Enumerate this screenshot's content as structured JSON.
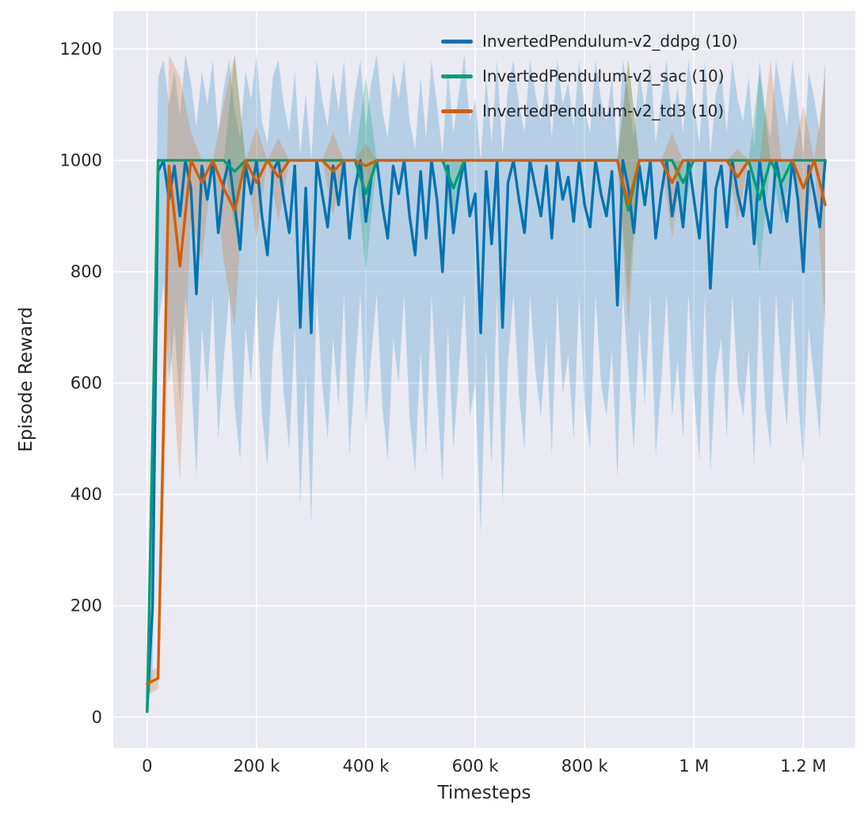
{
  "figure": {
    "background": "#ffffff",
    "axes_background": "#eaeaf2",
    "grid_color": "#ffffff",
    "text_color": "#262626"
  },
  "chart_data": {
    "type": "line",
    "title": "",
    "xlabel": "Timesteps",
    "ylabel": "Episode Reward",
    "grid": true,
    "legend_position": "upper center-right",
    "xlim": [
      -62000,
      1295000
    ],
    "ylim": [
      -55,
      1268
    ],
    "xticks": [
      {
        "value": 0,
        "label": "0"
      },
      {
        "value": 200000,
        "label": "200 k"
      },
      {
        "value": 400000,
        "label": "400 k"
      },
      {
        "value": 600000,
        "label": "600 k"
      },
      {
        "value": 800000,
        "label": "800 k"
      },
      {
        "value": 1000000,
        "label": "1 M"
      },
      {
        "value": 1200000,
        "label": "1.2 M"
      }
    ],
    "yticks": [
      {
        "value": 0,
        "label": "0"
      },
      {
        "value": 200,
        "label": "200"
      },
      {
        "value": 400,
        "label": "400"
      },
      {
        "value": 600,
        "label": "600"
      },
      {
        "value": 800,
        "label": "800"
      },
      {
        "value": 1000,
        "label": "1000"
      },
      {
        "value": 1200,
        "label": "1200"
      }
    ],
    "series": [
      {
        "name": "InvertedPendulum-v2_ddpg (10)",
        "color": "#0173b2",
        "band_alpha": 0.22,
        "line_width": 3.4,
        "x_step": 10000,
        "values": [
          15,
          200,
          980,
          1000,
          930,
          990,
          900,
          1000,
          950,
          760,
          990,
          930,
          1000,
          870,
          960,
          1000,
          920,
          840,
          990,
          940,
          1000,
          900,
          830,
          980,
          1000,
          930,
          870,
          990,
          700,
          950,
          690,
          1000,
          940,
          880,
          990,
          920,
          1000,
          860,
          950,
          1000,
          890,
          970,
          1000,
          920,
          860,
          990,
          940,
          1000,
          900,
          830,
          980,
          860,
          1000,
          930,
          800,
          990,
          870,
          950,
          1000,
          900,
          940,
          690,
          980,
          850,
          1000,
          700,
          960,
          1000,
          930,
          870,
          1000,
          950,
          900,
          990,
          860,
          1000,
          930,
          970,
          890,
          1000,
          920,
          880,
          1000,
          940,
          900,
          980,
          740,
          1000,
          950,
          870,
          990,
          920,
          1000,
          860,
          940,
          1000,
          900,
          960,
          880,
          1000,
          930,
          860,
          1000,
          770,
          950,
          990,
          880,
          1000,
          940,
          900,
          980,
          850,
          1000,
          920,
          870,
          1000,
          950,
          890,
          1000,
          930,
          800,
          990,
          940,
          880,
          1000
        ],
        "band_low": [
          5,
          80,
          700,
          780,
          600,
          700,
          560,
          760,
          620,
          430,
          700,
          580,
          760,
          500,
          640,
          760,
          560,
          460,
          700,
          600,
          760,
          540,
          450,
          660,
          760,
          580,
          480,
          700,
          380,
          620,
          350,
          760,
          600,
          500,
          680,
          560,
          760,
          470,
          620,
          760,
          520,
          650,
          760,
          560,
          460,
          680,
          600,
          760,
          540,
          440,
          660,
          470,
          760,
          580,
          420,
          700,
          480,
          620,
          760,
          540,
          600,
          330,
          660,
          450,
          760,
          380,
          640,
          760,
          580,
          480,
          760,
          620,
          540,
          680,
          470,
          760,
          580,
          650,
          500,
          760,
          560,
          480,
          760,
          600,
          540,
          660,
          430,
          760,
          620,
          480,
          700,
          560,
          760,
          470,
          600,
          760,
          540,
          640,
          500,
          760,
          580,
          460,
          760,
          440,
          620,
          680,
          500,
          760,
          600,
          540,
          660,
          450,
          760,
          560,
          480,
          760,
          620,
          520,
          760,
          580,
          450,
          700,
          600,
          500,
          760
        ],
        "band_high": [
          60,
          400,
          1150,
          1180,
          1100,
          1160,
          1080,
          1190,
          1140,
          1060,
          1160,
          1100,
          1180,
          1050,
          1130,
          1180,
          1090,
          1040,
          1160,
          1110,
          1190,
          1070,
          1030,
          1150,
          1180,
          1100,
          1050,
          1160,
          1010,
          1120,
          1000,
          1180,
          1110,
          1060,
          1160,
          1090,
          1180,
          1040,
          1120,
          1180,
          1060,
          1140,
          1190,
          1090,
          1040,
          1160,
          1110,
          1180,
          1070,
          1020,
          1150,
          1040,
          1180,
          1100,
          1010,
          1160,
          1050,
          1120,
          1190,
          1070,
          1110,
          1000,
          1150,
          1030,
          1180,
          1010,
          1130,
          1180,
          1100,
          1050,
          1180,
          1120,
          1070,
          1160,
          1040,
          1180,
          1100,
          1140,
          1060,
          1180,
          1090,
          1050,
          1180,
          1110,
          1070,
          1150,
          1010,
          1180,
          1120,
          1040,
          1160,
          1090,
          1180,
          1030,
          1110,
          1180,
          1070,
          1130,
          1050,
          1180,
          1100,
          1030,
          1180,
          1010,
          1120,
          1160,
          1050,
          1180,
          1110,
          1070,
          1150,
          1020,
          1180,
          1090,
          1040,
          1180,
          1120,
          1060,
          1180,
          1100,
          1010,
          1160,
          1110,
          1050,
          1180
        ]
      },
      {
        "name": "InvertedPendulum-v2_sac (10)",
        "color": "#029e73",
        "band_alpha": 0.25,
        "line_width": 3.4,
        "x_step": 20000,
        "values": [
          10,
          1000,
          1000,
          1000,
          1000,
          1000,
          1000,
          1000,
          980,
          1000,
          1000,
          1000,
          1000,
          1000,
          1000,
          1000,
          1000,
          1000,
          1000,
          1000,
          940,
          1000,
          1000,
          1000,
          1000,
          1000,
          1000,
          1000,
          950,
          1000,
          1000,
          1000,
          1000,
          1000,
          1000,
          1000,
          1000,
          1000,
          1000,
          1000,
          1000,
          1000,
          1000,
          1000,
          910,
          1000,
          1000,
          1000,
          1000,
          960,
          1000,
          1000,
          1000,
          1000,
          1000,
          1000,
          930,
          1000,
          960,
          1000,
          1000,
          1000,
          1000
        ],
        "band_low": [
          5,
          1000,
          1000,
          1000,
          1000,
          1000,
          1000,
          1000,
          880,
          1000,
          1000,
          1000,
          1000,
          1000,
          1000,
          1000,
          1000,
          1000,
          1000,
          1000,
          800,
          1000,
          1000,
          1000,
          1000,
          1000,
          1000,
          1000,
          860,
          1000,
          1000,
          1000,
          1000,
          1000,
          1000,
          1000,
          1000,
          1000,
          1000,
          1000,
          1000,
          1000,
          1000,
          1000,
          760,
          1000,
          1000,
          1000,
          1000,
          890,
          1000,
          1000,
          1000,
          1000,
          1000,
          1000,
          800,
          1000,
          890,
          1000,
          1000,
          1000,
          1000
        ],
        "band_high": [
          40,
          1000,
          1000,
          1000,
          1000,
          1000,
          1000,
          1000,
          1190,
          1000,
          1000,
          1000,
          1000,
          1000,
          1000,
          1000,
          1000,
          1000,
          1000,
          1000,
          1150,
          1000,
          1000,
          1000,
          1000,
          1000,
          1000,
          1000,
          1000,
          1000,
          1000,
          1000,
          1000,
          1000,
          1000,
          1000,
          1000,
          1000,
          1000,
          1000,
          1000,
          1000,
          1000,
          1000,
          1180,
          1000,
          1000,
          1000,
          1000,
          1000,
          1000,
          1000,
          1000,
          1000,
          1000,
          1000,
          1160,
          1000,
          1000,
          1000,
          1000,
          1000,
          1000
        ]
      },
      {
        "name": "InvertedPendulum-v2_td3 (10)",
        "color": "#d55e00",
        "band_alpha": 0.22,
        "line_width": 3.4,
        "x_step": 20000,
        "values": [
          60,
          70,
          990,
          810,
          1000,
          960,
          1000,
          950,
          910,
          1000,
          960,
          1000,
          970,
          1000,
          1000,
          1000,
          1000,
          980,
          1000,
          1000,
          990,
          1000,
          1000,
          1000,
          1000,
          1000,
          1000,
          1000,
          1000,
          1000,
          1000,
          1000,
          1000,
          1000,
          1000,
          1000,
          1000,
          1000,
          1000,
          1000,
          1000,
          1000,
          1000,
          1000,
          920,
          1000,
          1000,
          1000,
          960,
          1000,
          1000,
          1000,
          1000,
          1000,
          970,
          1000,
          1000,
          1000,
          1000,
          1000,
          950,
          1000,
          920
        ],
        "band_low": [
          40,
          50,
          700,
          420,
          900,
          820,
          1000,
          820,
          700,
          1000,
          860,
          1000,
          890,
          1000,
          1000,
          1000,
          1000,
          900,
          1000,
          1000,
          920,
          1000,
          1000,
          1000,
          1000,
          1000,
          1000,
          1000,
          1000,
          1000,
          1000,
          1000,
          1000,
          1000,
          1000,
          1000,
          1000,
          1000,
          1000,
          1000,
          1000,
          1000,
          1000,
          1000,
          700,
          1000,
          1000,
          1000,
          860,
          1000,
          1000,
          1000,
          1000,
          1000,
          890,
          1000,
          1000,
          1000,
          1000,
          1000,
          820,
          1000,
          700
        ],
        "band_high": [
          80,
          90,
          1190,
          1150,
          1050,
          1000,
          1000,
          1100,
          1190,
          1000,
          1060,
          1000,
          1040,
          1000,
          1000,
          1000,
          1000,
          1050,
          1000,
          1000,
          1030,
          1000,
          1000,
          1000,
          1000,
          1000,
          1000,
          1000,
          1000,
          1000,
          1000,
          1000,
          1000,
          1000,
          1000,
          1000,
          1000,
          1000,
          1000,
          1000,
          1000,
          1000,
          1000,
          1000,
          1180,
          1000,
          1000,
          1000,
          1050,
          1000,
          1000,
          1000,
          1000,
          1000,
          1020,
          1000,
          1000,
          1180,
          1000,
          1000,
          1100,
          1000,
          1150
        ]
      }
    ]
  }
}
